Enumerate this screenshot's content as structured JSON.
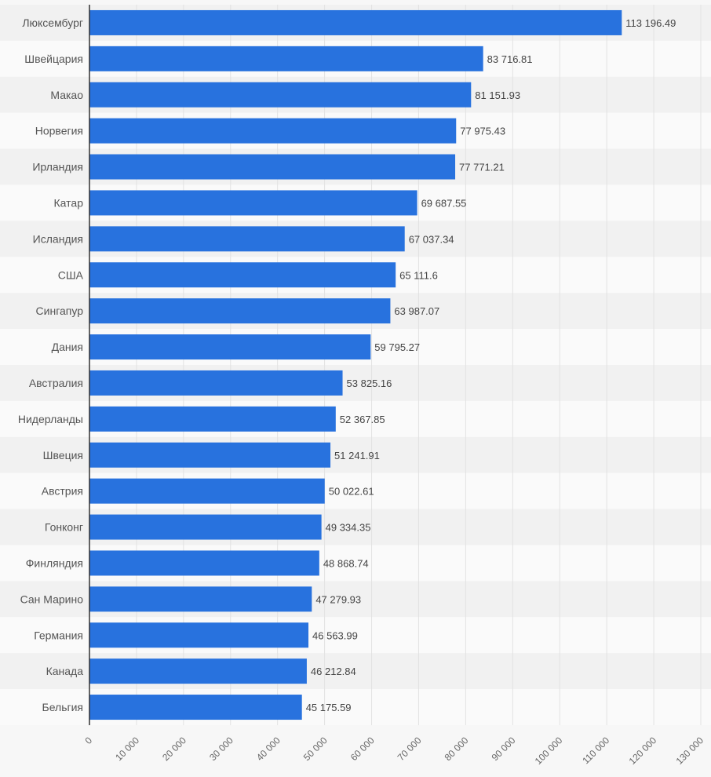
{
  "chart_data": {
    "type": "bar",
    "orientation": "horizontal",
    "title": "",
    "xlabel": "",
    "ylabel": "",
    "categories": [
      "Люксембург",
      "Швейцария",
      "Макао",
      "Норвегия",
      "Ирландия",
      "Катар",
      "Исландия",
      "США",
      "Сингапур",
      "Дания",
      "Австралия",
      "Нидерланды",
      "Швеция",
      "Австрия",
      "Гонконг",
      "Финляндия",
      "Сан Марино",
      "Германия",
      "Канада",
      "Бельгия"
    ],
    "values": [
      113196.49,
      83716.81,
      81151.93,
      77975.43,
      77771.21,
      69687.55,
      67037.34,
      65111.6,
      63987.07,
      59795.27,
      53825.16,
      52367.85,
      51241.91,
      50022.61,
      49334.35,
      48868.74,
      47279.93,
      46563.99,
      46212.84,
      45175.59
    ],
    "value_labels": [
      "113 196.49",
      "83 716.81",
      "81 151.93",
      "77 975.43",
      "77 771.21",
      "69 687.55",
      "67 037.34",
      "65 111.6",
      "63 987.07",
      "59 795.27",
      "53 825.16",
      "52 367.85",
      "51 241.91",
      "50 022.61",
      "49 334.35",
      "48 868.74",
      "47 279.93",
      "46 563.99",
      "46 212.84",
      "45 175.59"
    ],
    "xlim": [
      0,
      130000
    ],
    "x_ticks": [
      0,
      10000,
      20000,
      30000,
      40000,
      50000,
      60000,
      70000,
      80000,
      90000,
      100000,
      110000,
      120000,
      130000
    ],
    "x_tick_labels": [
      "0",
      "10 000",
      "20 000",
      "30 000",
      "40 000",
      "50 000",
      "60 000",
      "70 000",
      "80 000",
      "90 000",
      "100 000",
      "110 000",
      "120 000",
      "130 000"
    ],
    "grid": true,
    "legend": "none",
    "colors": {
      "bar": "#2872de",
      "row_stripe": "#f1f1f1",
      "row_plain": "#fafafa",
      "grid": "#e2e2e2",
      "axis": "#333333"
    }
  }
}
